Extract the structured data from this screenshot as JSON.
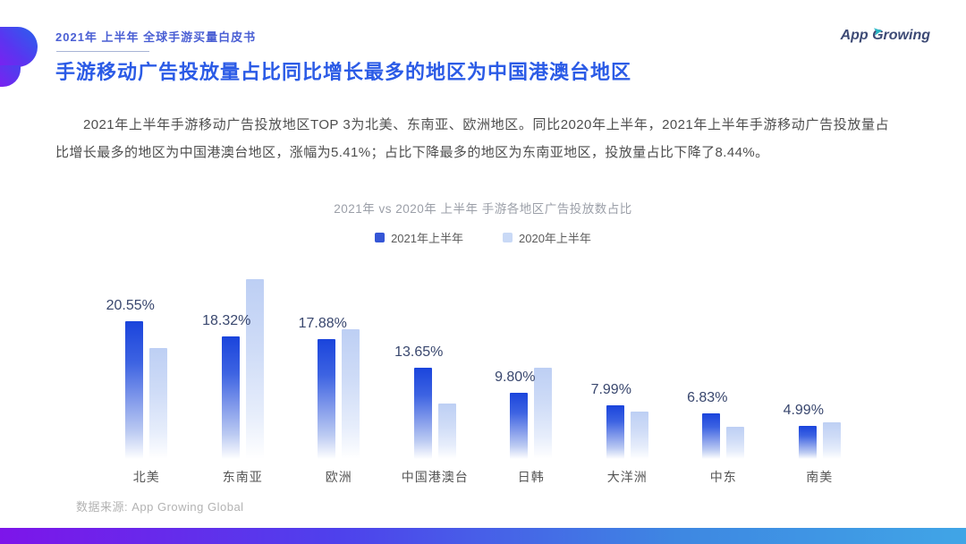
{
  "header": {
    "eyebrow": "2021年 上半年 全球手游买量白皮书",
    "title": "手游移动广告投放量占比同比增长最多的地区为中国港澳台地区",
    "logo_text": "App Growing"
  },
  "intro": {
    "text": "2021年上半年手游移动广告投放地区TOP 3为北美、东南亚、欧洲地区。同比2020年上半年，2021年上半年手游移动广告投放量占比增长最多的地区为中国港澳台地区，涨幅为5.41%；占比下降最多的地区为东南亚地区，投放量占比下降了8.44%。"
  },
  "chart_data": {
    "type": "bar",
    "title": "2021年 vs 2020年 上半年 手游各地区广告投放数占比",
    "categories": [
      "北美",
      "东南亚",
      "欧洲",
      "中国港澳台",
      "日韩",
      "大洋洲",
      "中东",
      "南美"
    ],
    "series": [
      {
        "name": "2021年上半年",
        "color": "#2A50DD",
        "values": [
          20.55,
          18.32,
          17.88,
          13.65,
          9.8,
          7.99,
          6.83,
          4.99
        ],
        "labels": [
          "20.55%",
          "18.32%",
          "17.88%",
          "13.65%",
          "9.80%",
          "7.99%",
          "6.83%",
          "4.99%"
        ]
      },
      {
        "name": "2020年上半年",
        "color": "#C9D9F6",
        "values": [
          16.5,
          26.76,
          19.3,
          8.24,
          13.6,
          7.0,
          4.8,
          5.5
        ],
        "estimated": true
      }
    ],
    "ylim": [
      0,
      27
    ],
    "grid": false,
    "legend_position": "top",
    "value_labels": "2021 series only"
  },
  "footer": {
    "source": "数据来源: App Growing Global"
  },
  "colors": {
    "accent_blue": "#2B5BE6",
    "bar_2021_top": "#1A44DC",
    "bar_2020_top": "#BDCFF4",
    "band_gradient_left": "#7D15EA",
    "band_gradient_right": "#40A5E6",
    "logo_arrow_teal": "#27B5C4"
  }
}
